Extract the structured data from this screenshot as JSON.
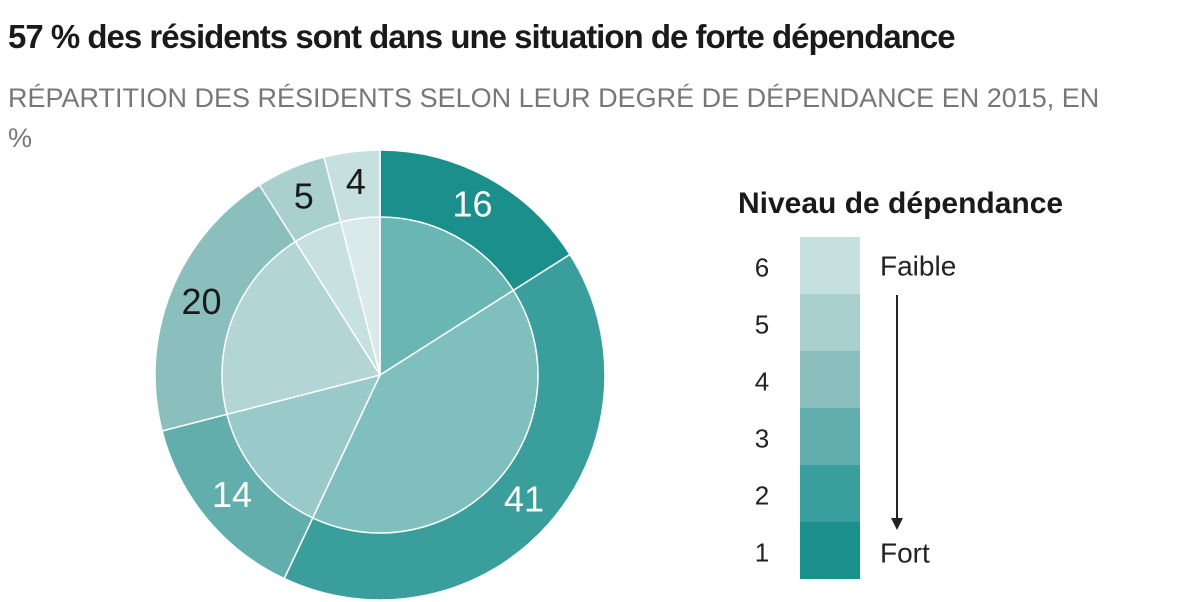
{
  "chart_data": {
    "type": "pie",
    "title": "57 % des résidents sont dans une situation de forte dépendance",
    "subtitle": "RÉPARTITION DES RÉSIDENTS SELON LEUR DEGRÉ DE DÉPENDANCE EN 2015, EN %",
    "legend_title": "Niveau de dépendance",
    "legend_low": "Faible",
    "legend_high": "Fort",
    "categories": [
      "1",
      "2",
      "3",
      "4",
      "5",
      "6"
    ],
    "values": [
      16,
      41,
      14,
      20,
      5,
      4
    ],
    "colors": [
      "#1a8f8c",
      "#3a9e9c",
      "#62aeac",
      "#8abfbe",
      "#a9cfcf",
      "#c6dfdf"
    ]
  }
}
